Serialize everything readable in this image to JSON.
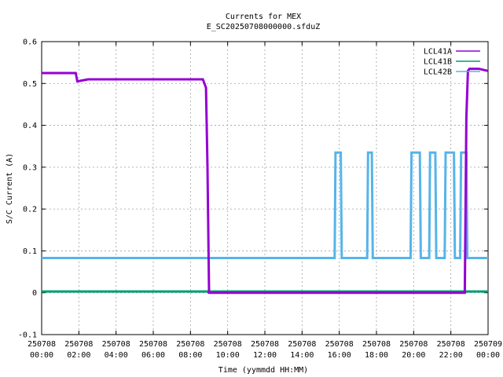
{
  "chart_data": {
    "type": "line",
    "title": "Currents for MEX",
    "subtitle": "E_SC20250708000000.sfduZ",
    "xlabel": "Time (yymmdd HH:MM)",
    "ylabel": "S/C Current (A)",
    "xlim": [
      "2025-07-08 00:00",
      "2025-07-09 00:00"
    ],
    "ylim": [
      -0.1,
      0.6
    ],
    "grid": true,
    "legend_position": "top-right",
    "x_ticks": [
      {
        "date": "250708",
        "time": "00:00"
      },
      {
        "date": "250708",
        "time": "02:00"
      },
      {
        "date": "250708",
        "time": "04:00"
      },
      {
        "date": "250708",
        "time": "06:00"
      },
      {
        "date": "250708",
        "time": "08:00"
      },
      {
        "date": "250708",
        "time": "10:00"
      },
      {
        "date": "250708",
        "time": "12:00"
      },
      {
        "date": "250708",
        "time": "14:00"
      },
      {
        "date": "250708",
        "time": "16:00"
      },
      {
        "date": "250708",
        "time": "18:00"
      },
      {
        "date": "250708",
        "time": "20:00"
      },
      {
        "date": "250708",
        "time": "22:00"
      },
      {
        "date": "250709",
        "time": "00:00"
      }
    ],
    "y_ticks": [
      "-0.1",
      "0",
      "0.1",
      "0.2",
      "0.3",
      "0.4",
      "0.5",
      "0.6"
    ],
    "series": [
      {
        "name": "LCL41A",
        "color": "#9400d3",
        "x": [
          "00:00",
          "01:50",
          "01:55",
          "02:30",
          "04:00",
          "06:00",
          "08:00",
          "08:40",
          "08:50",
          "08:55",
          "09:00",
          "09:05",
          "10:00",
          "12:00",
          "14:00",
          "16:00",
          "18:00",
          "20:00",
          "22:00",
          "22:45",
          "22:50",
          "22:55",
          "23:00",
          "23:30",
          "24:00"
        ],
        "values": [
          0.525,
          0.525,
          0.505,
          0.51,
          0.51,
          0.51,
          0.51,
          0.51,
          0.49,
          0.3,
          0.0,
          0.0,
          0.0,
          0.0,
          0.0,
          0.0,
          0.0,
          0.0,
          0.0,
          0.0,
          0.42,
          0.53,
          0.535,
          0.535,
          0.53
        ]
      },
      {
        "name": "LCL41B",
        "color": "#009e73",
        "x": [
          "00:00",
          "06:00",
          "12:00",
          "18:00",
          "24:00"
        ],
        "values": [
          0.003,
          0.003,
          0.003,
          0.003,
          0.003
        ]
      },
      {
        "name": "LCL42B",
        "color": "#56b4e9",
        "x": [
          "00:00",
          "15:45",
          "15:48",
          "16:05",
          "16:08",
          "17:30",
          "17:33",
          "17:45",
          "17:48",
          "19:50",
          "19:53",
          "20:20",
          "20:23",
          "20:50",
          "20:53",
          "21:10",
          "21:13",
          "21:40",
          "21:43",
          "22:10",
          "22:13",
          "22:30",
          "22:33",
          "22:50",
          "22:53",
          "23:30",
          "24:00"
        ],
        "values": [
          0.083,
          0.083,
          0.335,
          0.335,
          0.083,
          0.083,
          0.335,
          0.335,
          0.083,
          0.083,
          0.335,
          0.335,
          0.083,
          0.083,
          0.335,
          0.335,
          0.083,
          0.083,
          0.335,
          0.335,
          0.083,
          0.083,
          0.335,
          0.335,
          0.083,
          0.083,
          0.083
        ]
      }
    ]
  }
}
